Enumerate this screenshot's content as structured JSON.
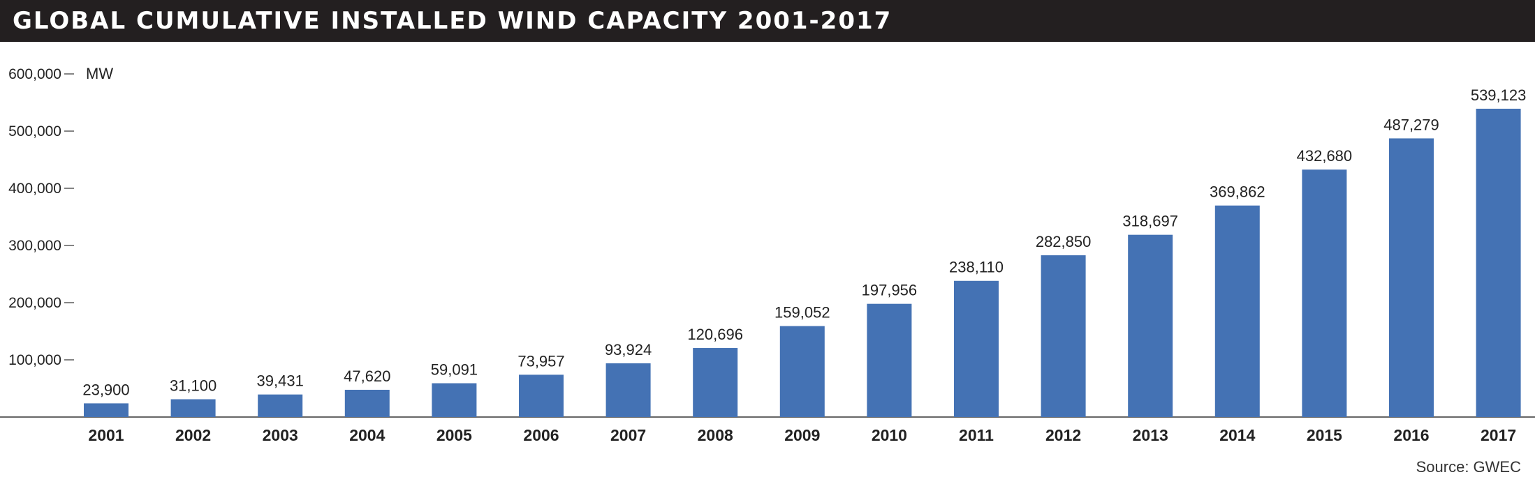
{
  "title": "GLOBAL CUMULATIVE INSTALLED WIND CAPACITY 2001-2017",
  "source": "Source: GWEC",
  "colors": {
    "bar": "#4472b4",
    "title_bg": "#231f20",
    "axis": "#333333"
  },
  "chart_data": {
    "type": "bar",
    "title": "GLOBAL CUMULATIVE INSTALLED WIND CAPACITY 2001-2017",
    "ylabel": "MW",
    "ylim": [
      0,
      600000
    ],
    "yticks": [
      100000,
      200000,
      300000,
      400000,
      500000,
      600000
    ],
    "ytick_labels": [
      "100,000",
      "200,000",
      "300,000",
      "400,000",
      "500,000",
      "600,000"
    ],
    "grid": false,
    "categories": [
      "2001",
      "2002",
      "2003",
      "2004",
      "2005",
      "2006",
      "2007",
      "2008",
      "2009",
      "2010",
      "2011",
      "2012",
      "2013",
      "2014",
      "2015",
      "2016",
      "2017"
    ],
    "values": [
      23900,
      31100,
      39431,
      47620,
      59091,
      73957,
      93924,
      120696,
      159052,
      197956,
      238110,
      282850,
      318697,
      369862,
      432680,
      487279,
      539123
    ],
    "value_labels": [
      "23,900",
      "31,100",
      "39,431",
      "47,620",
      "59,091",
      "73,957",
      "93,924",
      "120,696",
      "159,052",
      "197,956",
      "238,110",
      "282,850",
      "318,697",
      "369,862",
      "432,680",
      "487,279",
      "539,123"
    ]
  }
}
